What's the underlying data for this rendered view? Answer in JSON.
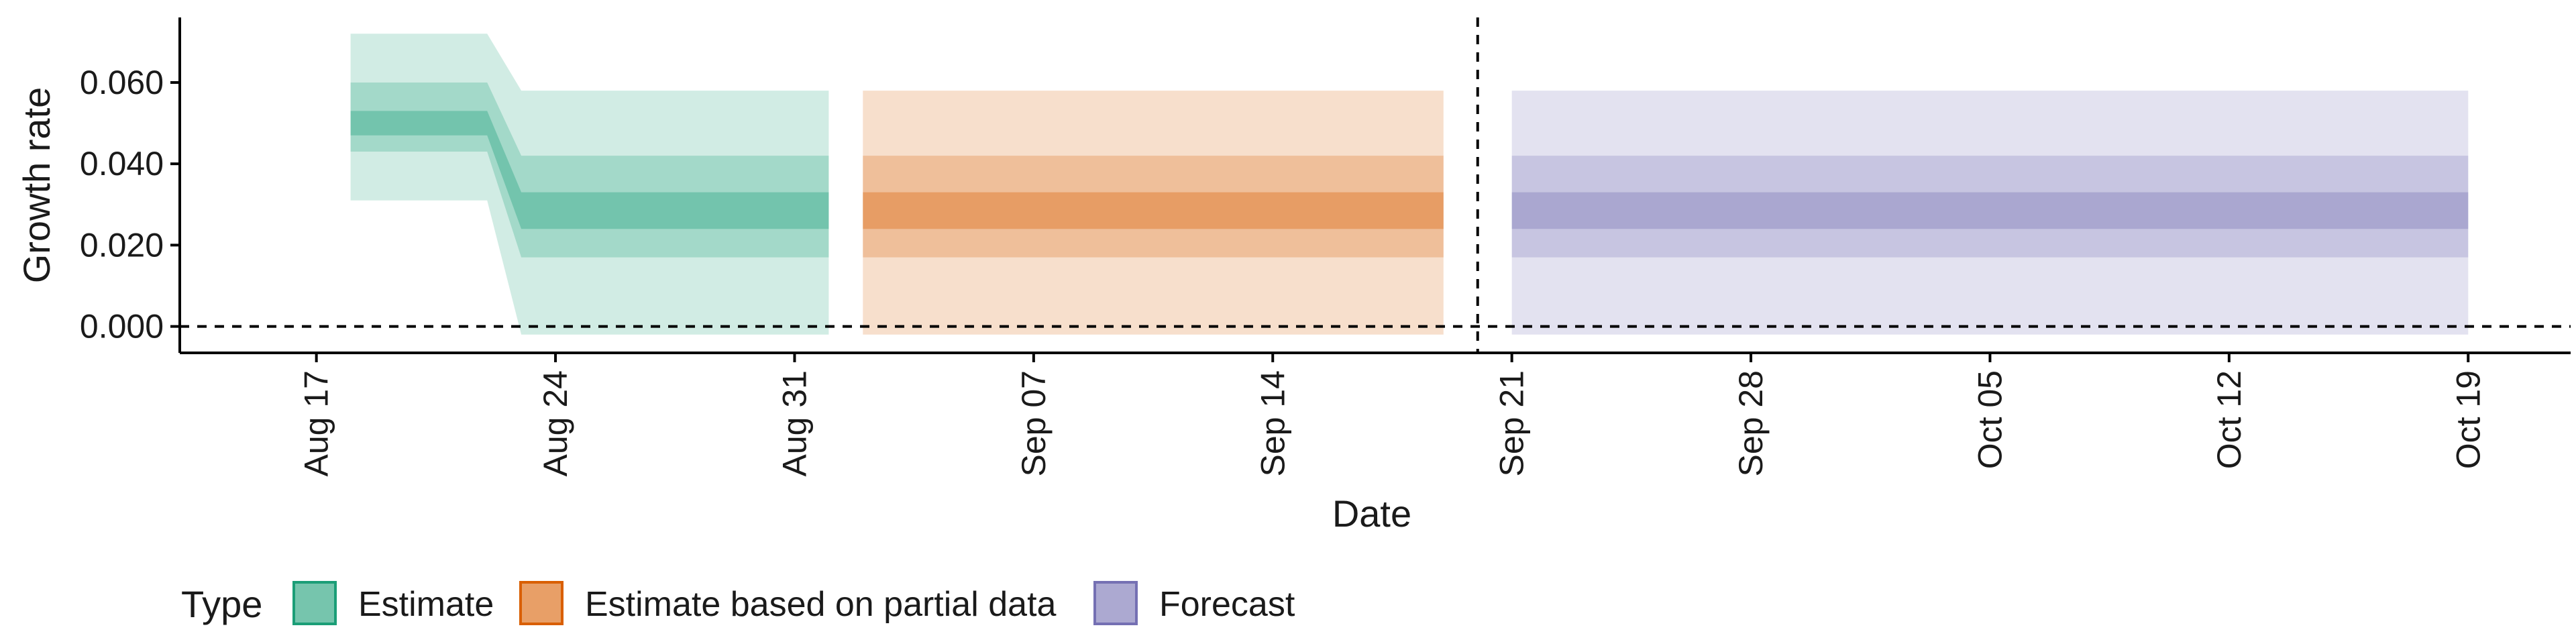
{
  "chart_data": {
    "type": "area",
    "title": "",
    "xlabel": "Date",
    "ylabel": "Growth rate",
    "x_type": "date",
    "xlim": [
      "2020-08-13",
      "2020-10-22"
    ],
    "ylim": [
      -0.0065,
      0.076
    ],
    "x_ticks": [
      "2020-08-17",
      "2020-08-24",
      "2020-08-31",
      "2020-09-07",
      "2020-09-14",
      "2020-09-21",
      "2020-09-28",
      "2020-10-05",
      "2020-10-12",
      "2020-10-19"
    ],
    "x_tick_labels": [
      "Aug 17",
      "Aug 24",
      "Aug 31",
      "Sep 07",
      "Sep 14",
      "Sep 21",
      "Sep 28",
      "Oct 05",
      "Oct 12",
      "Oct 19"
    ],
    "y_ticks": [
      0,
      0.02,
      0.04,
      0.06
    ],
    "y_tick_labels": [
      "0.000",
      "0.020",
      "0.040",
      "0.060"
    ],
    "hline": 0,
    "vline": "2020-09-20",
    "legend": {
      "title": "Type",
      "placement": "bottom-left"
    },
    "grid": false,
    "series": [
      {
        "name": "Estimate",
        "color": "#1B9E77",
        "x": [
          "2020-08-18",
          "2020-08-22",
          "2020-08-23",
          "2020-09-01"
        ],
        "lower_90": [
          0.031,
          0.031,
          -0.002,
          -0.002
        ],
        "upper_90": [
          0.072,
          0.072,
          0.058,
          0.058
        ],
        "lower_50": [
          0.043,
          0.043,
          0.017,
          0.017
        ],
        "upper_50": [
          0.06,
          0.06,
          0.042,
          0.042
        ],
        "lower_20": [
          0.047,
          0.047,
          0.024,
          0.024
        ],
        "upper_20": [
          0.053,
          0.053,
          0.033,
          0.033
        ]
      },
      {
        "name": "Estimate based on partial data",
        "color": "#D95F02",
        "x": [
          "2020-09-02",
          "2020-09-19"
        ],
        "lower_90": [
          -0.002,
          -0.002
        ],
        "upper_90": [
          0.058,
          0.058
        ],
        "lower_50": [
          0.017,
          0.017
        ],
        "upper_50": [
          0.042,
          0.042
        ],
        "lower_20": [
          0.024,
          0.024
        ],
        "upper_20": [
          0.033,
          0.033
        ]
      },
      {
        "name": "Forecast",
        "color": "#7570B3",
        "x": [
          "2020-09-21",
          "2020-10-19"
        ],
        "lower_90": [
          -0.002,
          -0.002
        ],
        "upper_90": [
          0.058,
          0.058
        ],
        "lower_50": [
          0.017,
          0.017
        ],
        "upper_50": [
          0.042,
          0.042
        ],
        "lower_20": [
          0.024,
          0.024
        ],
        "upper_20": [
          0.033,
          0.033
        ]
      }
    ]
  }
}
